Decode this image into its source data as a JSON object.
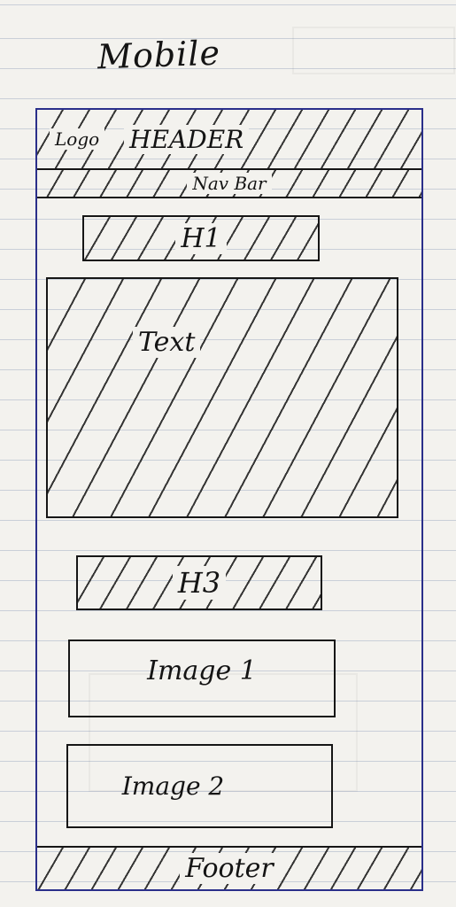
{
  "sketch": {
    "title": "Mobile",
    "header": {
      "logo": "Logo",
      "label": "HEADER"
    },
    "navbar": {
      "label": "Nav Bar"
    },
    "h1": {
      "label": "H1"
    },
    "text_block": {
      "label": "Text"
    },
    "h3": {
      "label": "H3"
    },
    "image1": {
      "label": "Image 1"
    },
    "image2": {
      "label": "Image 2"
    },
    "footer": {
      "label": "Footer"
    }
  },
  "colors": {
    "paper": "#f3f2ee",
    "ink": "#141414",
    "frame": "#2a2f8a",
    "rule_lines": "#c9cfd8"
  }
}
